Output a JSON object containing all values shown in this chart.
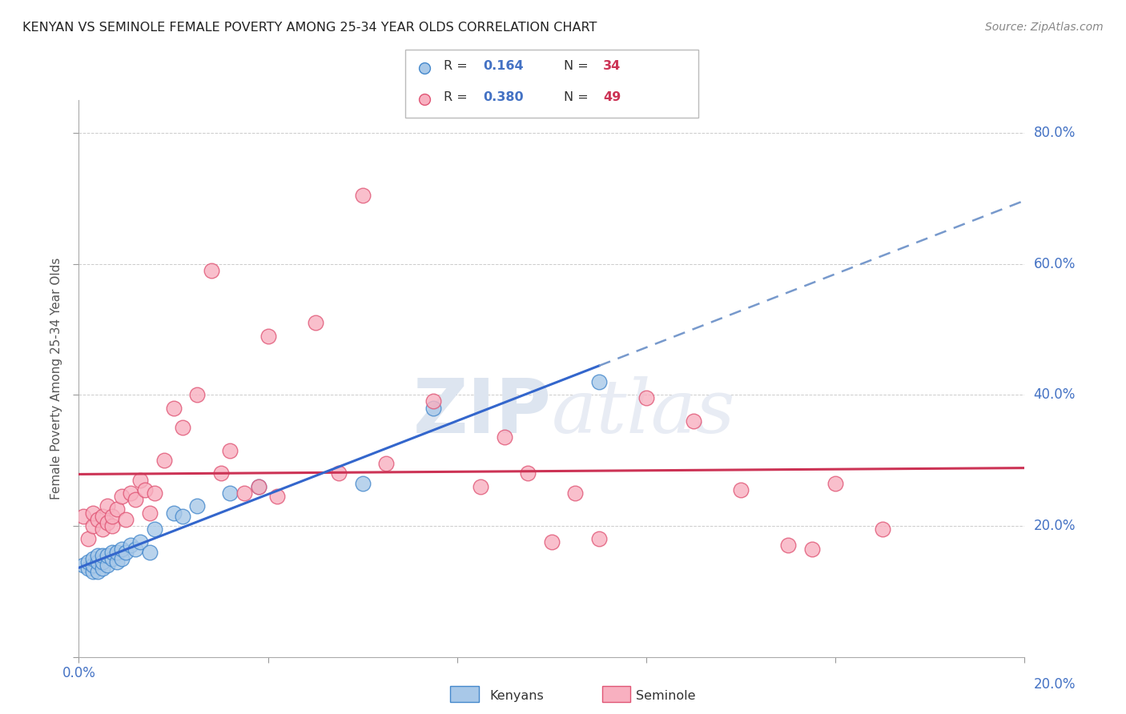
{
  "title": "KENYAN VS SEMINOLE FEMALE POVERTY AMONG 25-34 YEAR OLDS CORRELATION CHART",
  "source": "Source: ZipAtlas.com",
  "ylabel": "Female Poverty Among 25-34 Year Olds",
  "xlim": [
    0.0,
    0.2
  ],
  "ylim": [
    0.0,
    0.85
  ],
  "kenyan_color": "#a8c8e8",
  "seminole_color": "#f8b0c0",
  "kenyan_edge_color": "#4488cc",
  "seminole_edge_color": "#e05575",
  "trend_kenyan_solid_color": "#3366cc",
  "trend_kenyan_dashed_color": "#7799cc",
  "trend_seminole_color": "#cc3355",
  "legend_R_kenyan": "0.164",
  "legend_N_kenyan": "34",
  "legend_R_seminole": "0.380",
  "legend_N_seminole": "49",
  "kenyan_x": [
    0.001,
    0.002,
    0.002,
    0.003,
    0.003,
    0.003,
    0.004,
    0.004,
    0.004,
    0.005,
    0.005,
    0.005,
    0.006,
    0.006,
    0.007,
    0.007,
    0.008,
    0.008,
    0.009,
    0.009,
    0.01,
    0.011,
    0.012,
    0.013,
    0.015,
    0.016,
    0.02,
    0.022,
    0.025,
    0.032,
    0.038,
    0.06,
    0.075,
    0.11
  ],
  "kenyan_y": [
    0.14,
    0.135,
    0.145,
    0.13,
    0.14,
    0.15,
    0.13,
    0.145,
    0.155,
    0.135,
    0.145,
    0.155,
    0.14,
    0.155,
    0.15,
    0.16,
    0.145,
    0.16,
    0.15,
    0.165,
    0.16,
    0.17,
    0.165,
    0.175,
    0.16,
    0.195,
    0.22,
    0.215,
    0.23,
    0.25,
    0.26,
    0.265,
    0.38,
    0.42
  ],
  "seminole_x": [
    0.001,
    0.002,
    0.003,
    0.003,
    0.004,
    0.005,
    0.005,
    0.006,
    0.006,
    0.007,
    0.007,
    0.008,
    0.009,
    0.01,
    0.011,
    0.012,
    0.013,
    0.014,
    0.015,
    0.016,
    0.018,
    0.02,
    0.022,
    0.025,
    0.028,
    0.03,
    0.032,
    0.035,
    0.038,
    0.04,
    0.042,
    0.05,
    0.055,
    0.06,
    0.065,
    0.075,
    0.085,
    0.09,
    0.095,
    0.1,
    0.105,
    0.11,
    0.12,
    0.13,
    0.14,
    0.15,
    0.155,
    0.16,
    0.17
  ],
  "seminole_y": [
    0.215,
    0.18,
    0.2,
    0.22,
    0.21,
    0.195,
    0.215,
    0.205,
    0.23,
    0.2,
    0.215,
    0.225,
    0.245,
    0.21,
    0.25,
    0.24,
    0.27,
    0.255,
    0.22,
    0.25,
    0.3,
    0.38,
    0.35,
    0.4,
    0.59,
    0.28,
    0.315,
    0.25,
    0.26,
    0.49,
    0.245,
    0.51,
    0.28,
    0.705,
    0.295,
    0.39,
    0.26,
    0.335,
    0.28,
    0.175,
    0.25,
    0.18,
    0.395,
    0.36,
    0.255,
    0.17,
    0.165,
    0.265,
    0.195
  ],
  "background_color": "#ffffff",
  "grid_color": "#cccccc",
  "watermark_color": "#dde5f0"
}
